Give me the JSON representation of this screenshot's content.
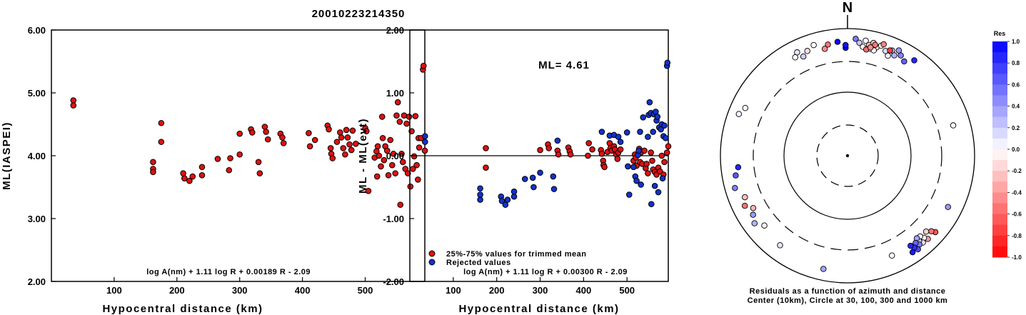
{
  "title": "20010223214350",
  "colors": {
    "used": "#dd1111",
    "rejected": "#1133cc"
  },
  "chart_data": [
    {
      "type": "scatter",
      "xlabel": "Hypocentral distance (km)",
      "ylabel": "ML(IASPEI)",
      "xlim": [
        0,
        595
      ],
      "ylim": [
        2.0,
        6.0
      ],
      "xticks": [
        100,
        200,
        300,
        400,
        500
      ],
      "yticks": [
        "2.00",
        "3.00",
        "4.00",
        "5.00",
        "6.00"
      ],
      "formula": "log A(nm) + 1.11 log R + 0.00189 R - 2.09",
      "series": [
        {
          "color": "#dd1111",
          "points": [
            [
              35,
              4.88
            ],
            [
              35,
              4.8
            ],
            [
              162,
              3.79
            ],
            [
              162,
              3.74
            ],
            [
              162,
              3.9
            ],
            [
              175,
              4.52
            ],
            [
              175,
              4.22
            ],
            [
              210,
              3.72
            ],
            [
              212,
              3.64
            ],
            [
              220,
              3.6
            ],
            [
              225,
              3.67
            ],
            [
              240,
              3.82
            ],
            [
              240,
              3.69
            ],
            [
              265,
              3.95
            ],
            [
              283,
              3.77
            ],
            [
              285,
              3.96
            ],
            [
              300,
              4.35
            ],
            [
              300,
              4.02
            ],
            [
              318,
              4.42
            ],
            [
              320,
              4.37
            ],
            [
              330,
              3.9
            ],
            [
              332,
              3.72
            ],
            [
              340,
              4.46
            ],
            [
              342,
              4.38
            ],
            [
              345,
              4.26
            ],
            [
              365,
              4.35
            ],
            [
              368,
              4.29
            ],
            [
              370,
              4.2
            ],
            [
              410,
              4.36
            ],
            [
              412,
              4.15
            ],
            [
              420,
              4.25
            ],
            [
              440,
              4.48
            ],
            [
              442,
              4.42
            ],
            [
              445,
              4.12
            ],
            [
              446,
              4.03
            ],
            [
              448,
              3.96
            ],
            [
              455,
              4.22
            ],
            [
              460,
              4.37
            ],
            [
              462,
              4.29
            ],
            [
              465,
              4.12
            ],
            [
              468,
              4.02
            ],
            [
              470,
              4.41
            ],
            [
              472,
              4.29
            ],
            [
              475,
              4.18
            ],
            [
              478,
              4.09
            ],
            [
              480,
              4.4
            ],
            [
              485,
              4.19
            ],
            [
              500,
              4.44
            ],
            [
              502,
              4.39
            ],
            [
              505,
              3.44
            ],
            [
              515,
              3.97
            ],
            [
              518,
              4.07
            ],
            [
              519,
              3.67
            ],
            [
              520,
              4.15
            ],
            [
              522,
              4.0
            ],
            [
              525,
              3.83
            ],
            [
              527,
              4.62
            ],
            [
              528,
              4.28
            ],
            [
              530,
              3.93
            ],
            [
              532,
              4.15
            ],
            [
              535,
              4.08
            ],
            [
              537,
              3.69
            ],
            [
              540,
              4.25
            ],
            [
              543,
              3.85
            ],
            [
              545,
              4.03
            ],
            [
              548,
              3.72
            ],
            [
              550,
              4.64
            ],
            [
              552,
              4.85
            ],
            [
              555,
              4.54
            ],
            [
              556,
              3.22
            ],
            [
              558,
              4.03
            ],
            [
              560,
              3.9
            ],
            [
              562,
              4.64
            ],
            [
              564,
              3.79
            ],
            [
              566,
              4.51
            ],
            [
              568,
              3.72
            ],
            [
              570,
              4.62
            ],
            [
              572,
              3.51
            ],
            [
              574,
              4.39
            ],
            [
              576,
              3.79
            ],
            [
              578,
              3.99
            ],
            [
              580,
              4.63
            ],
            [
              582,
              3.85
            ],
            [
              584,
              3.62
            ],
            [
              585,
              4.28
            ],
            [
              586,
              4.13
            ],
            [
              589,
              4.28
            ],
            [
              592,
              5.37
            ],
            [
              593,
              5.43
            ],
            [
              595,
              4.08
            ]
          ]
        }
      ]
    },
    {
      "type": "scatter",
      "xlabel": "Hypocentral distance (km)",
      "ylabel": "ML - ML(evt)",
      "xlim": [
        0,
        595
      ],
      "ylim": [
        -2.0,
        2.0
      ],
      "xticks": [
        100,
        200,
        300,
        400,
        500
      ],
      "yticks": [
        "-2.00",
        "-1.00",
        "0.00",
        "1.00",
        "2.00"
      ],
      "annotation": "ML= 4.61",
      "formula": "log A(nm) + 1.11 log R + 0.00300 R - 2.09",
      "legend": [
        {
          "label": "25%-75% values for trimmed mean",
          "color": "#dd1111"
        },
        {
          "label": "Rejected values",
          "color": "#1133cc"
        }
      ],
      "series": [
        {
          "color": "#dd1111",
          "points": [
            [
              175,
              0.12
            ],
            [
              175,
              -0.19
            ],
            [
              300,
              0.09
            ],
            [
              318,
              0.18
            ],
            [
              320,
              0.12
            ],
            [
              340,
              0.08
            ],
            [
              342,
              0.02
            ],
            [
              365,
              0.13
            ],
            [
              368,
              0.07
            ],
            [
              370,
              0.02
            ],
            [
              410,
              0.0
            ],
            [
              412,
              0.2
            ],
            [
              420,
              0.1
            ],
            [
              440,
              0.09
            ],
            [
              442,
              0.03
            ],
            [
              445,
              -0.08
            ],
            [
              446,
              -0.15
            ],
            [
              448,
              -0.18
            ],
            [
              455,
              0.06
            ],
            [
              460,
              0.2
            ],
            [
              462,
              0.12
            ],
            [
              465,
              0.08
            ],
            [
              470,
              0.15
            ],
            [
              472,
              0.1
            ],
            [
              475,
              0.02
            ],
            [
              478,
              -0.05
            ],
            [
              480,
              0.05
            ],
            [
              485,
              0.1
            ],
            [
              515,
              -0.08
            ],
            [
              518,
              0.02
            ],
            [
              520,
              -0.03
            ],
            [
              522,
              -0.16
            ],
            [
              528,
              0.11
            ],
            [
              530,
              -0.1
            ],
            [
              532,
              0.05
            ],
            [
              535,
              -0.13
            ],
            [
              540,
              0.08
            ],
            [
              543,
              -0.2
            ],
            [
              545,
              -0.13
            ],
            [
              548,
              -0.28
            ],
            [
              555,
              0.05
            ],
            [
              558,
              -0.08
            ],
            [
              560,
              -0.22
            ],
            [
              564,
              -0.26
            ],
            [
              568,
              -0.3
            ],
            [
              572,
              -0.19
            ],
            [
              576,
              -0.25
            ],
            [
              580,
              0.0
            ],
            [
              584,
              -0.3
            ],
            [
              586,
              -0.1
            ],
            [
              592,
              0.05
            ],
            [
              595,
              0.15
            ]
          ]
        },
        {
          "color": "#1133cc",
          "points": [
            [
              35,
              0.31
            ],
            [
              35,
              0.22
            ],
            [
              162,
              -0.52
            ],
            [
              162,
              -0.7
            ],
            [
              162,
              -0.62
            ],
            [
              210,
              -0.65
            ],
            [
              212,
              -0.72
            ],
            [
              220,
              -0.78
            ],
            [
              225,
              -0.7
            ],
            [
              240,
              -0.65
            ],
            [
              240,
              -0.57
            ],
            [
              265,
              -0.37
            ],
            [
              283,
              -0.35
            ],
            [
              285,
              -0.5
            ],
            [
              300,
              -0.27
            ],
            [
              330,
              -0.33
            ],
            [
              332,
              -0.53
            ],
            [
              340,
              0.24
            ],
            [
              442,
              0.38
            ],
            [
              460,
              0.32
            ],
            [
              470,
              0.33
            ],
            [
              480,
              0.3
            ],
            [
              485,
              0.22
            ],
            [
              500,
              0.37
            ],
            [
              502,
              -0.17
            ],
            [
              505,
              -0.62
            ],
            [
              515,
              -0.18
            ],
            [
              519,
              -0.33
            ],
            [
              522,
              -0.4
            ],
            [
              525,
              0.01
            ],
            [
              527,
              0.08
            ],
            [
              530,
              0.38
            ],
            [
              532,
              -0.46
            ],
            [
              537,
              0.61
            ],
            [
              548,
              0.3
            ],
            [
              550,
              0.65
            ],
            [
              552,
              0.85
            ],
            [
              555,
              0.68
            ],
            [
              556,
              -0.77
            ],
            [
              560,
              0.38
            ],
            [
              562,
              0.66
            ],
            [
              564,
              -0.48
            ],
            [
              566,
              0.7
            ],
            [
              568,
              0.56
            ],
            [
              570,
              0.62
            ],
            [
              572,
              -0.58
            ],
            [
              574,
              0.45
            ],
            [
              578,
              0.42
            ],
            [
              580,
              0.5
            ],
            [
              582,
              -0.36
            ],
            [
              584,
              0.31
            ],
            [
              586,
              0.48
            ],
            [
              589,
              0.28
            ],
            [
              592,
              1.43
            ],
            [
              593,
              1.48
            ]
          ]
        }
      ]
    }
  ],
  "polar": {
    "north_label": "N",
    "caption_line1": "Residuals as a function of azimuth and distance",
    "caption_line2": "Center (10km), Circle at 30, 100, 300 and 1000 km",
    "colorbar": {
      "title": "Res",
      "ticks": [
        "1.0",
        "0.8",
        "0.6",
        "0.4",
        "0.2",
        "0.0",
        "-0.2",
        "-0.4",
        "-0.6",
        "-0.8",
        "-1.0"
      ]
    },
    "stations": [
      [
        -1,
        1.0
      ],
      [
        -5,
        0.96
      ],
      [
        -1,
        0.93
      ],
      [
        4,
        0.52
      ],
      [
        6,
        0.22
      ],
      [
        8,
        -0.08
      ],
      [
        9,
        0.0
      ],
      [
        11,
        -0.27
      ],
      [
        12,
        0.01
      ],
      [
        13,
        -0.2
      ],
      [
        15,
        -0.1
      ],
      [
        14,
        0.0
      ],
      [
        17,
        0.02
      ],
      [
        20,
        0.13
      ],
      [
        22,
        0.05
      ],
      [
        23,
        0.22
      ],
      [
        25,
        0.3
      ],
      [
        26,
        0.4
      ],
      [
        28,
        0.48
      ],
      [
        31,
        0.62
      ],
      [
        35,
        0.85
      ],
      [
        -10,
        -0.55
      ],
      [
        -12,
        -0.45
      ],
      [
        -17,
        0.0
      ],
      [
        -21,
        -0.12
      ],
      [
        -24,
        0.2
      ],
      [
        -26,
        0.1
      ],
      [
        -28,
        0.0
      ],
      [
        10,
        -0.58
      ],
      [
        14,
        -0.53
      ],
      [
        12,
        -0.44
      ],
      [
        18,
        -0.48
      ],
      [
        22,
        -0.75
      ],
      [
        74,
        0.03
      ],
      [
        131,
        -0.65
      ],
      [
        132,
        -0.55
      ],
      [
        134,
        -0.2
      ],
      [
        136,
        -0.4
      ],
      [
        137,
        0.0
      ],
      [
        138,
        0.05
      ],
      [
        139,
        0.1
      ],
      [
        140,
        0.2
      ],
      [
        140,
        0.35
      ],
      [
        141,
        0.5
      ],
      [
        142,
        0.6
      ],
      [
        143,
        0.7
      ],
      [
        144,
        0.8
      ],
      [
        145,
        0.85
      ],
      [
        146,
        0.9
      ],
      [
        117,
        0.4
      ],
      [
        156,
        0.0
      ],
      [
        192,
        0.35
      ],
      [
        217,
        0.1
      ],
      [
        230,
        -0.05
      ],
      [
        234,
        0.3
      ],
      [
        238,
        0.4
      ],
      [
        241,
        -0.3
      ],
      [
        244,
        -0.55
      ],
      [
        248,
        -0.25
      ],
      [
        254,
        0.5
      ],
      [
        260,
        0.65
      ],
      [
        264,
        0.85
      ],
      [
        291,
        0.05
      ],
      [
        295,
        0.0
      ]
    ]
  }
}
